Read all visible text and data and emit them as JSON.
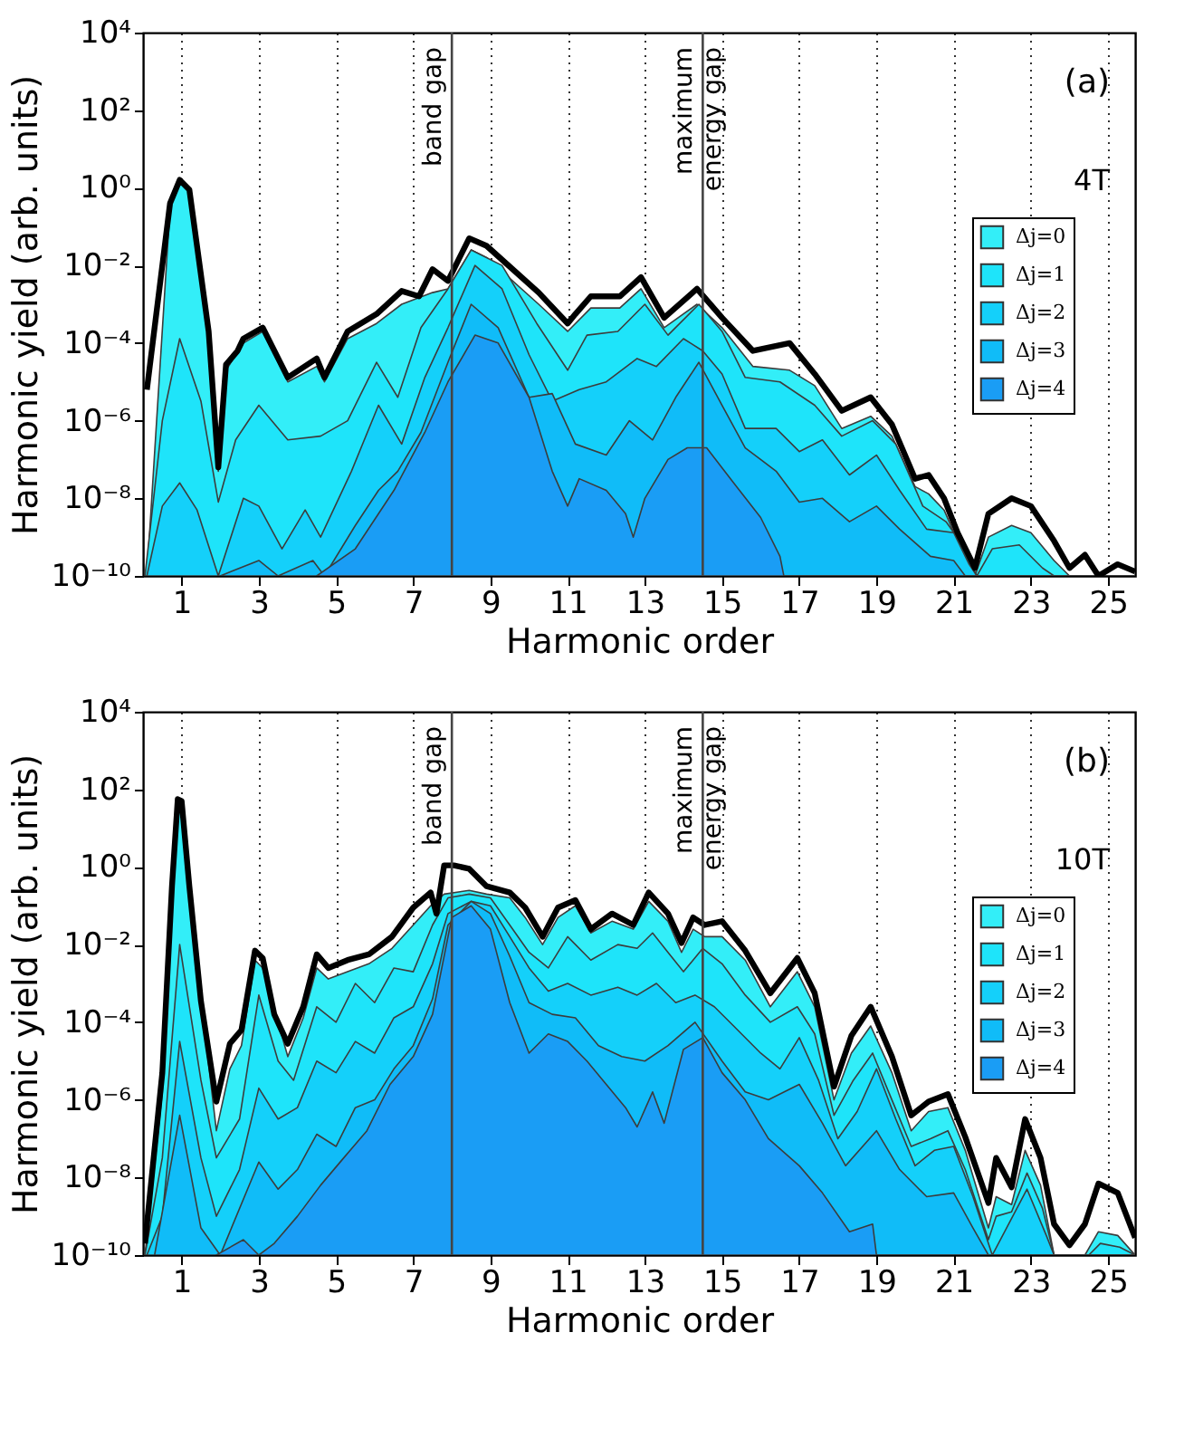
{
  "chart_data": [
    {
      "type": "area",
      "xlabel": "Harmonic order",
      "ylabel": "Harmonic yield (arb. units)",
      "log": "y",
      "grid": "x",
      "legend": "right",
      "xlim": [
        0,
        25.7
      ],
      "xticks": [
        1,
        3,
        5,
        7,
        9,
        11,
        13,
        15,
        17,
        19,
        21,
        23,
        25
      ],
      "ylim": [
        1e-10,
        10000.0
      ],
      "yticks": [
        {
          "value": 1e-10,
          "label": "10⁻¹⁰"
        },
        {
          "value": 1e-08,
          "label": "10⁻⁸"
        },
        {
          "value": 1e-06,
          "label": "10⁻⁶"
        },
        {
          "value": 0.0001,
          "label": "10⁻⁴"
        },
        {
          "value": 0.01,
          "label": "10⁻²"
        },
        {
          "value": 1,
          "label": "10⁰"
        },
        {
          "value": 100,
          "label": "10²"
        },
        {
          "value": 10000.0,
          "label": "10⁴"
        }
      ],
      "ref_lines": [
        {
          "axis": "x",
          "value": 8,
          "label": "band gap"
        },
        {
          "axis": "x",
          "value": 14.5,
          "label": "maximum\nenergy gap"
        }
      ],
      "annotations": [
        "(a)",
        "4T"
      ],
      "series": [
        {
          "name": "Δj=0",
          "type": "area",
          "color": "#33eef8",
          "x": [
            0.1,
            0.7,
            0.95,
            1.2,
            1.7,
            1.95,
            2.15,
            2.6,
            3.1,
            3.75,
            4.5,
            4.7,
            5.3,
            6.05,
            6.7,
            7.5,
            7.9,
            8.5,
            8.9,
            10.25,
            11.0,
            11.6,
            12.35,
            12.9,
            13.5,
            14.35,
            15.0,
            15.8,
            16.75,
            17.4,
            18.1,
            18.85,
            19.4,
            20.0,
            20.35,
            20.75,
            21.1,
            21.55,
            21.9,
            22.5,
            23.0,
            23.6,
            24.0,
            25.7
          ],
          "values": [
            1e-10,
            0.32,
            1.4,
            0.8,
            0.00016,
            5e-08,
            2e-05,
            0.0001,
            0.0002,
            1e-05,
            2.5e-05,
            1e-05,
            0.00013,
            0.00032,
            0.001,
            0.002,
            0.0025,
            0.025,
            0.016,
            0.001,
            0.0002,
            0.0008,
            0.0008,
            0.0025,
            0.00025,
            0.001,
            0.00025,
            2.5e-05,
            2e-05,
            8e-06,
            6.3e-07,
            1.3e-06,
            4e-07,
            2e-08,
            1.3e-08,
            5e-09,
            8e-10,
            1e-10,
            1e-09,
            2e-09,
            1.3e-09,
            2.5e-10,
            1e-10,
            1e-10
          ]
        },
        {
          "name": "Δj=1",
          "type": "area",
          "color": "#1ee4fa",
          "x": [
            0.05,
            0.5,
            0.95,
            1.5,
            1.95,
            2.4,
            3.0,
            3.75,
            4.6,
            5.3,
            6.05,
            6.6,
            7.2,
            7.9,
            8.5,
            9.3,
            10.2,
            11.0,
            11.5,
            12.3,
            13.0,
            13.6,
            14.4,
            15.0,
            15.6,
            16.5,
            17.4,
            18.1,
            18.9,
            19.5,
            20.2,
            20.8,
            21.3,
            21.6,
            22.0,
            22.7,
            23.3,
            23.6,
            25.7
          ],
          "values": [
            1e-10,
            1e-06,
            0.00013,
            3.2e-06,
            8e-09,
            3.2e-07,
            2.5e-06,
            3.2e-07,
            4e-07,
            1e-06,
            3.2e-05,
            4e-06,
            0.00025,
            0.0025,
            0.025,
            0.01,
            0.00032,
            2e-05,
            0.00016,
            0.0002,
            0.001,
            0.00016,
            0.001,
            0.0002,
            1.3e-05,
            1e-05,
            2.5e-06,
            4e-07,
            1e-06,
            2.5e-07,
            6.3e-09,
            2.5e-09,
            5e-10,
            1e-10,
            5e-10,
            6.3e-10,
            1.6e-10,
            1e-10,
            1e-10
          ]
        },
        {
          "name": "Δj=2",
          "type": "area",
          "color": "#14d0fa",
          "x": [
            0.1,
            0.5,
            0.95,
            1.4,
            1.95,
            2.6,
            3.0,
            3.6,
            4.2,
            4.6,
            5.4,
            6.1,
            6.7,
            7.3,
            7.9,
            8.6,
            9.3,
            10.0,
            10.6,
            11.3,
            12.0,
            12.8,
            13.3,
            14.0,
            14.5,
            15.0,
            15.6,
            16.4,
            17.0,
            17.6,
            18.3,
            19.0,
            19.6,
            20.3,
            21.0,
            21.4,
            21.6,
            25.7
          ],
          "values": [
            1e-10,
            6.3e-09,
            2.5e-08,
            5e-09,
            1e-10,
            1e-08,
            6.3e-09,
            5e-10,
            5e-09,
            1e-09,
            5e-08,
            2.5e-06,
            2.5e-07,
            1.3e-05,
            0.00025,
            0.01,
            0.0025,
            5e-05,
            3.2e-06,
            6.3e-06,
            1e-05,
            4e-05,
            2.5e-05,
            0.00013,
            6.3e-05,
            1.6e-05,
            6.3e-07,
            6.3e-07,
            1.6e-07,
            3.2e-07,
            4e-08,
            1.3e-07,
            1.6e-08,
            1.6e-09,
            1.3e-09,
            2e-10,
            1e-10,
            1e-10
          ]
        },
        {
          "name": "Δj=3",
          "type": "area",
          "color": "#10bcf8",
          "x": [
            2.0,
            3.0,
            3.5,
            4.4,
            4.7,
            5.5,
            6.1,
            6.6,
            7.2,
            7.9,
            8.5,
            9.2,
            10.0,
            10.6,
            11.2,
            12.0,
            12.6,
            13.2,
            13.8,
            14.4,
            15.0,
            15.6,
            16.4,
            17.0,
            17.6,
            18.3,
            19.0,
            19.6,
            20.4,
            21.0,
            21.3,
            25.7
          ],
          "values": [
            1e-10,
            2.5e-10,
            1e-10,
            2.5e-10,
            1e-10,
            2e-09,
            1.6e-08,
            5e-08,
            5e-07,
            3.2e-05,
            0.001,
            0.00025,
            4e-06,
            5e-06,
            2.5e-07,
            1.3e-07,
            1e-06,
            3.2e-07,
            4e-06,
            3.2e-05,
            2.5e-06,
            2e-07,
            5e-08,
            8e-09,
            1e-08,
            2.5e-09,
            6.3e-09,
            1.6e-09,
            3.2e-10,
            2.5e-10,
            1e-10,
            1e-10
          ]
        },
        {
          "name": "Δj=4",
          "type": "area",
          "color": "#1a9df5",
          "x": [
            4.5,
            5.5,
            6.5,
            7.3,
            7.9,
            8.6,
            9.2,
            10.0,
            10.6,
            11.0,
            11.3,
            12.0,
            12.5,
            12.7,
            13.0,
            13.6,
            14.1,
            14.6,
            15.3,
            16.0,
            16.5,
            16.6,
            25.7
          ],
          "values": [
            1e-10,
            5e-10,
            1.6e-08,
            5e-07,
            1e-05,
            0.00016,
            0.0001,
            4e-06,
            5e-08,
            6.3e-09,
            3.2e-08,
            1.6e-08,
            4e-09,
            1e-09,
            1e-08,
            1e-07,
            2e-07,
            2e-07,
            2.5e-08,
            3.2e-09,
            3.2e-10,
            1e-10,
            1e-10
          ]
        },
        {
          "type": "line",
          "color": "#000000",
          "x": [
            0.1,
            0.7,
            0.95,
            1.2,
            1.7,
            1.95,
            2.15,
            2.45,
            2.6,
            3.1,
            3.75,
            4.5,
            4.7,
            5.3,
            6.05,
            6.7,
            7.15,
            7.5,
            7.9,
            8.45,
            8.9,
            10.25,
            11.0,
            11.2,
            11.6,
            12.35,
            12.9,
            13.5,
            14.35,
            15.0,
            15.8,
            16.75,
            17.4,
            18.1,
            18.85,
            19.4,
            20.0,
            20.35,
            20.75,
            21.1,
            21.55,
            21.9,
            22.5,
            23.0,
            23.6,
            24.0,
            24.4,
            24.75,
            25.25,
            25.7
          ],
          "values": [
            6.3e-06,
            0.4,
            1.6,
            0.9,
            0.0002,
            6.3e-08,
            2.8e-05,
            6.3e-05,
            0.00013,
            0.00025,
            1.3e-05,
            4e-05,
            1.3e-05,
            0.0002,
            0.00056,
            0.0022,
            0.0016,
            0.008,
            0.004,
            0.05,
            0.032,
            0.002,
            0.00032,
            0.00056,
            0.0016,
            0.0016,
            0.005,
            0.00045,
            0.0025,
            0.00045,
            6.3e-05,
            0.0001,
            1.6e-05,
            1.8e-06,
            4e-06,
            8e-07,
            3.2e-08,
            4e-08,
            1e-08,
            1.3e-09,
            1.6e-10,
            4e-09,
            1e-08,
            6.3e-09,
            8e-10,
            1.6e-10,
            3.5e-10,
            1e-10,
            2e-10,
            1.3e-10
          ]
        }
      ]
    },
    {
      "type": "area",
      "xlabel": "Harmonic order",
      "ylabel": "Harmonic yield (arb. units)",
      "log": "y",
      "grid": "x",
      "legend": "right",
      "xlim": [
        0,
        25.7
      ],
      "xticks": [
        1,
        3,
        5,
        7,
        9,
        11,
        13,
        15,
        17,
        19,
        21,
        23,
        25
      ],
      "ylim": [
        1e-10,
        10000.0
      ],
      "yticks": [
        {
          "value": 1e-10,
          "label": "10⁻¹⁰"
        },
        {
          "value": 1e-08,
          "label": "10⁻⁸"
        },
        {
          "value": 1e-06,
          "label": "10⁻⁶"
        },
        {
          "value": 0.0001,
          "label": "10⁻⁴"
        },
        {
          "value": 0.01,
          "label": "10⁻²"
        },
        {
          "value": 1,
          "label": "10⁰"
        },
        {
          "value": 100,
          "label": "10²"
        },
        {
          "value": 10000.0,
          "label": "10⁴"
        }
      ],
      "ref_lines": [
        {
          "axis": "x",
          "value": 8,
          "label": "band gap"
        },
        {
          "axis": "x",
          "value": 14.5,
          "label": "maximum\nenergy gap"
        }
      ],
      "annotations": [
        "(b)",
        "10T"
      ],
      "series": [
        {
          "name": "Δj=0",
          "type": "area",
          "color": "#33eef8",
          "x": [
            0.05,
            0.5,
            0.9,
            1.0,
            1.2,
            1.9,
            2.25,
            2.55,
            2.9,
            3.1,
            3.75,
            4.15,
            4.5,
            4.8,
            5.3,
            5.85,
            6.45,
            7.0,
            7.45,
            7.8,
            8.45,
            8.9,
            9.5,
            9.9,
            10.35,
            10.75,
            11.2,
            11.6,
            12.15,
            12.7,
            13.1,
            13.6,
            13.95,
            14.25,
            14.55,
            15.0,
            15.6,
            16.25,
            16.95,
            17.4,
            17.9,
            18.35,
            18.85,
            19.4,
            19.9,
            20.35,
            20.85,
            21.3,
            21.9,
            22.1,
            22.5,
            22.85,
            23.25,
            23.6,
            24.4,
            24.75,
            25.25,
            25.7
          ],
          "values": [
            1e-10,
            1.6e-06,
            40,
            40,
            0.16,
            1.6e-07,
            6.3e-06,
            2.5e-05,
            0.004,
            0.0025,
            1.3e-05,
            0.00013,
            0.0025,
            0.0013,
            0.002,
            0.0032,
            0.008,
            0.032,
            0.1,
            0.2,
            0.25,
            0.2,
            0.16,
            0.05,
            0.01,
            0.05,
            0.1,
            0.02,
            0.04,
            0.025,
            0.13,
            0.04,
            0.0063,
            0.025,
            0.016,
            0.016,
            0.004,
            0.00025,
            0.002,
            0.00025,
            1e-06,
            1.6e-05,
            8e-05,
            5e-06,
            1.6e-07,
            5e-07,
            6.3e-07,
            5e-08,
            5e-10,
            3.2e-09,
            2e-09,
            5e-08,
            6.3e-09,
            1e-10,
            1e-10,
            4e-10,
            3.2e-10,
            1e-10
          ]
        },
        {
          "name": "Δj=1",
          "type": "area",
          "color": "#1ee4fa",
          "x": [
            0.05,
            0.5,
            0.95,
            1.5,
            1.9,
            2.5,
            3.0,
            3.5,
            3.9,
            4.5,
            5.0,
            5.5,
            6.0,
            6.5,
            7.0,
            7.5,
            7.9,
            8.45,
            9.0,
            9.5,
            10.0,
            10.5,
            11.0,
            11.6,
            12.3,
            12.8,
            13.2,
            13.6,
            14.0,
            14.5,
            15.0,
            15.6,
            16.25,
            16.95,
            17.4,
            17.9,
            18.4,
            18.9,
            19.4,
            19.9,
            20.4,
            20.85,
            21.3,
            21.9,
            22.1,
            22.5,
            22.9,
            23.3,
            23.6,
            24.5,
            24.8,
            25.3,
            25.7
          ],
          "values": [
            1e-10,
            3.2e-08,
            0.01,
            3.2e-06,
            3.2e-08,
            3.2e-07,
            0.0005,
            1e-05,
            3.2e-06,
            0.00025,
            0.0001,
            0.001,
            0.00032,
            0.0025,
            0.002,
            0.032,
            0.16,
            0.2,
            0.16,
            0.032,
            0.0063,
            0.0025,
            0.016,
            0.004,
            0.01,
            0.008,
            0.02,
            0.0063,
            0.002,
            0.008,
            0.0032,
            0.0005,
            0.0001,
            0.00025,
            5e-05,
            4e-07,
            3.2e-06,
            1.6e-05,
            1e-06,
            6.3e-08,
            1e-07,
            1.6e-07,
            1.6e-08,
            2.5e-10,
            1e-09,
            1.3e-09,
            1.3e-08,
            1.6e-09,
            1e-10,
            1e-10,
            2e-10,
            1.6e-10,
            1e-10
          ]
        },
        {
          "name": "Δj=2",
          "type": "area",
          "color": "#14d0fa",
          "x": [
            0.1,
            0.5,
            0.95,
            1.5,
            1.9,
            2.5,
            3.0,
            3.5,
            4.0,
            4.5,
            5.0,
            5.5,
            6.0,
            6.5,
            7.0,
            7.5,
            7.9,
            8.5,
            9.0,
            9.5,
            10.0,
            10.5,
            11.0,
            11.6,
            12.3,
            12.8,
            13.3,
            13.8,
            14.3,
            14.8,
            15.3,
            16.0,
            16.5,
            17.0,
            17.5,
            18.0,
            18.5,
            19.0,
            19.5,
            20.0,
            20.5,
            21.0,
            21.5,
            22.0,
            22.9,
            23.4,
            23.6,
            25.7
          ],
          "values": [
            1e-10,
            1e-09,
            3.2e-05,
            3.2e-08,
            1e-09,
            1.6e-08,
            2e-06,
            3.2e-07,
            6.3e-07,
            1e-05,
            5e-06,
            3.2e-05,
            1.6e-05,
            0.00013,
            0.00025,
            0.0032,
            0.063,
            0.13,
            0.1,
            0.016,
            0.0025,
            0.00063,
            0.001,
            0.0005,
            0.0008,
            0.0005,
            0.001,
            0.00032,
            0.0005,
            0.00025,
            8e-05,
            1.6e-05,
            6.3e-06,
            4e-05,
            3.2e-06,
            1e-07,
            5e-07,
            6.3e-06,
            3.2e-07,
            2e-08,
            5e-08,
            6.3e-08,
            3.2e-09,
            1e-10,
            5e-09,
            3.2e-10,
            1e-10,
            1e-10
          ]
        },
        {
          "name": "Δj=3",
          "type": "area",
          "color": "#10bcf8",
          "x": [
            0.3,
            0.95,
            1.5,
            2.0,
            3.0,
            3.5,
            4.0,
            4.5,
            5.0,
            5.5,
            6.0,
            6.5,
            7.0,
            7.5,
            7.9,
            8.5,
            9.0,
            9.5,
            10.0,
            10.6,
            11.2,
            11.8,
            12.4,
            13.0,
            13.6,
            14.3,
            15.0,
            15.6,
            16.2,
            17.0,
            17.6,
            18.2,
            19.0,
            19.6,
            20.3,
            21.0,
            21.5,
            21.9,
            25.7
          ],
          "values": [
            1e-10,
            4e-07,
            5e-10,
            1e-10,
            2.5e-08,
            5e-09,
            1.6e-08,
            1.3e-07,
            6.3e-08,
            6.3e-07,
            1e-06,
            6.3e-06,
            2.5e-05,
            0.0004,
            0.032,
            0.13,
            0.063,
            0.005,
            0.00032,
            0.00016,
            0.00013,
            2.5e-05,
            1.3e-05,
            1e-05,
            2.5e-05,
            0.0001,
            1e-05,
            1.6e-06,
            1e-06,
            2.5e-06,
            2.5e-07,
            2e-08,
            1.6e-07,
            1.6e-08,
            3.2e-09,
            4e-09,
            5e-10,
            1e-10,
            1e-10
          ]
        },
        {
          "name": "Δj=4",
          "type": "area",
          "color": "#1a9df5",
          "x": [
            1.9,
            2.6,
            3.0,
            3.4,
            4.0,
            4.6,
            5.2,
            5.8,
            6.4,
            7.0,
            7.5,
            8.0,
            8.5,
            9.0,
            9.5,
            10.0,
            10.5,
            11.0,
            11.5,
            12.0,
            12.5,
            12.8,
            13.2,
            13.5,
            14.0,
            14.5,
            15.0,
            15.6,
            16.2,
            17.0,
            17.6,
            18.3,
            18.9,
            19.0,
            25.7
          ],
          "values": [
            1e-10,
            2.5e-10,
            1e-10,
            2e-10,
            1e-09,
            6.3e-09,
            3.2e-08,
            1.6e-07,
            2.5e-06,
            1.3e-05,
            0.00016,
            0.05,
            0.1,
            0.025,
            0.00032,
            1.6e-05,
            5e-05,
            3.2e-05,
            1e-05,
            2.5e-06,
            6.3e-07,
            2e-07,
            1.6e-06,
            2.5e-07,
            2e-05,
            4e-05,
            5e-06,
            1e-06,
            1e-07,
            2e-08,
            4e-09,
            4e-10,
            6.3e-10,
            1e-10,
            1e-10
          ]
        },
        {
          "type": "line",
          "color": "#000000",
          "x": [
            0.05,
            0.5,
            0.75,
            0.9,
            1.0,
            1.2,
            1.5,
            1.9,
            2.25,
            2.55,
            2.9,
            3.1,
            3.4,
            3.75,
            4.15,
            4.5,
            4.8,
            5.3,
            5.85,
            6.45,
            7.0,
            7.45,
            7.6,
            7.8,
            8.05,
            8.45,
            8.9,
            9.5,
            9.9,
            10.35,
            10.75,
            11.2,
            11.6,
            12.15,
            12.7,
            13.1,
            13.6,
            13.95,
            14.25,
            14.55,
            15.0,
            15.6,
            16.25,
            16.95,
            17.4,
            17.9,
            18.35,
            18.85,
            19.4,
            19.9,
            20.35,
            20.85,
            21.3,
            21.9,
            22.1,
            22.5,
            22.85,
            23.25,
            23.6,
            24.0,
            24.4,
            24.75,
            25.25,
            25.7
          ],
          "values": [
            2e-10,
            5e-06,
            0.32,
            56,
            50,
            0.32,
            0.00035,
            9e-07,
            2.8e-05,
            6.3e-05,
            0.007,
            0.0045,
            0.00016,
            2.8e-05,
            0.00025,
            0.0056,
            0.0025,
            0.004,
            0.0056,
            0.016,
            0.09,
            0.22,
            0.063,
            1.1,
            1.1,
            0.9,
            0.32,
            0.22,
            0.09,
            0.016,
            0.09,
            0.14,
            0.025,
            0.063,
            0.032,
            0.22,
            0.063,
            0.011,
            0.05,
            0.032,
            0.04,
            0.007,
            0.00056,
            0.0045,
            0.00056,
            2.2e-06,
            4.5e-05,
            0.00025,
            1.3e-05,
            4e-07,
            9e-07,
            1.4e-06,
            1.1e-07,
            2.2e-09,
            3.2e-08,
            5.6e-09,
            3.2e-07,
            3.2e-08,
            6.3e-10,
            1.8e-10,
            6.3e-10,
            7e-09,
            4e-09,
            2.8e-10
          ]
        }
      ]
    }
  ]
}
